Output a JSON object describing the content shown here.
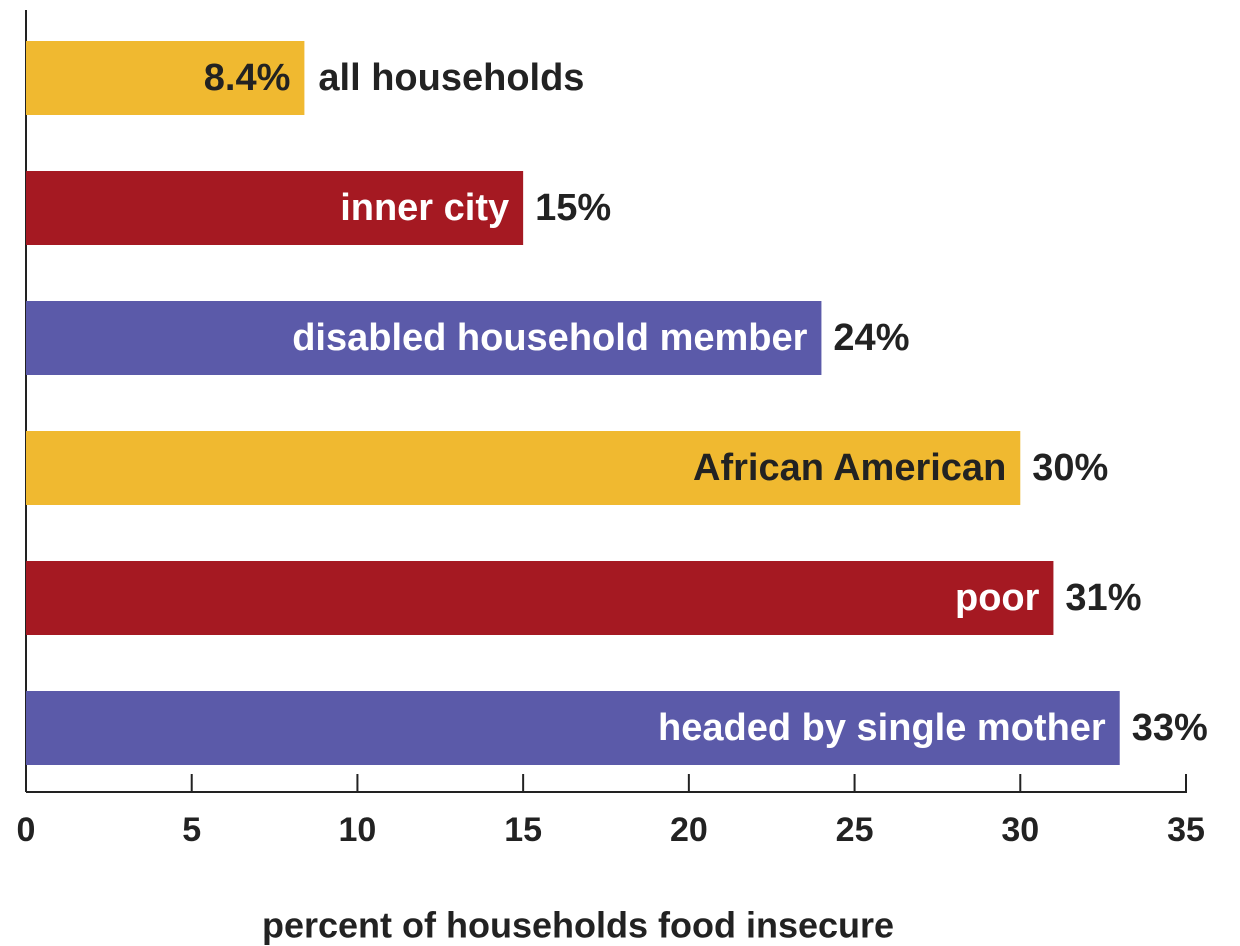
{
  "chart_data": {
    "type": "bar",
    "orientation": "horizontal",
    "xlabel": "percent of households food insecure",
    "categories": [
      "all households",
      "inner city",
      "disabled household member",
      "African American",
      "poor",
      "headed by single mother"
    ],
    "values": [
      8.4,
      15,
      24,
      30,
      31,
      33
    ],
    "value_labels": [
      "8.4%",
      "15%",
      "24%",
      "30%",
      "31%",
      "33%"
    ],
    "colors": [
      "#f0b930",
      "#a51922",
      "#5b5aa9",
      "#f0b930",
      "#a51922",
      "#5b5aa9"
    ],
    "xlim": [
      0,
      35
    ],
    "xticks": [
      0,
      5,
      10,
      15,
      20,
      25,
      30,
      35
    ],
    "grid": false
  }
}
